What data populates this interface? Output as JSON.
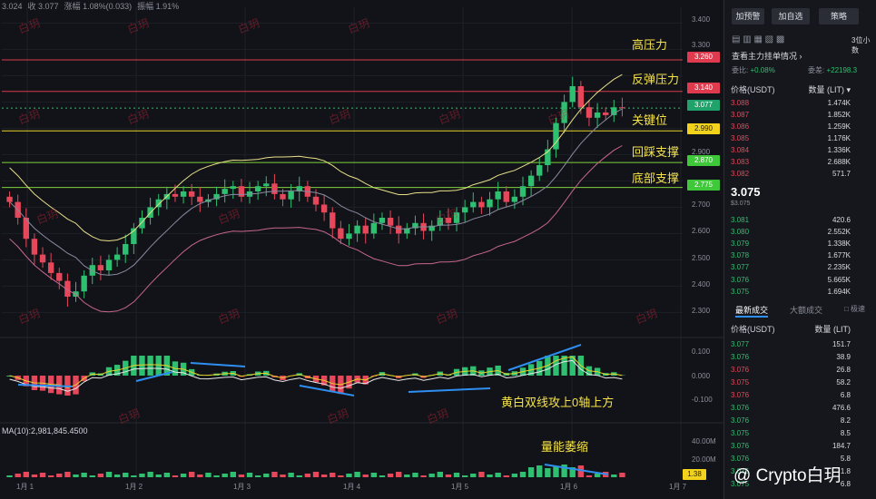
{
  "header": {
    "open_partial": "3.024",
    "close_text": "收 3.077",
    "change_text": "涨幅 1.08%(0.033)",
    "amplitude_text": "振幅 1.91%"
  },
  "annotations": {
    "high_resistance": "高压力",
    "rebound_resistance": "反弹压力",
    "key_level": "关键位",
    "pullback_support": "回踩支撑",
    "bottom_support": "底部支撑",
    "macd_note": "黄白双线攻上0轴上方",
    "volume_note": "量能萎缩"
  },
  "price_tags": {
    "high": "3.260",
    "rebound": "3.140",
    "last": "3.077",
    "key": "2.990",
    "pullback": "2.870",
    "bottom": "2.775"
  },
  "colors": {
    "up": "#2fbf71",
    "down": "#e6475a",
    "annotation": "#f5e34a",
    "upper_band": "#e8e08a",
    "lower_band": "#c7668f",
    "middle_band": "#8a8aa0",
    "arrow": "#2e8ff0"
  },
  "ma_text": "MA(10):2,981,845.4500",
  "watermark": "@ Crypto白玥",
  "watermark_small": "白玥",
  "volume_label_partial": "1.38",
  "chart_data": {
    "type": "candlestick",
    "y_ticks": [
      "3.400",
      "3.300",
      "3.200",
      "3.100",
      "3.000",
      "2.900",
      "2.800",
      "2.700",
      "2.600",
      "2.500",
      "2.400",
      "2.300"
    ],
    "x_ticks": [
      "1月 1",
      "1月 2",
      "1月 3",
      "1月 4",
      "1月 5",
      "1月 6",
      "1月 7"
    ],
    "macd_ticks": [
      "0.100",
      "0.000",
      "-0.100"
    ],
    "volume_ticks": [
      "40.00M",
      "20.00M"
    ],
    "horizontal_levels": [
      3.26,
      3.14,
      2.99,
      2.87,
      2.775
    ],
    "last_price": 3.077,
    "ylim": [
      2.26,
      3.46
    ],
    "series_close": [
      2.72,
      2.66,
      2.58,
      2.52,
      2.49,
      2.45,
      2.42,
      2.36,
      2.38,
      2.44,
      2.48,
      2.46,
      2.5,
      2.52,
      2.56,
      2.62,
      2.66,
      2.7,
      2.73,
      2.75,
      2.74,
      2.76,
      2.74,
      2.72,
      2.73,
      2.75,
      2.77,
      2.78,
      2.74,
      2.76,
      2.78,
      2.79,
      2.75,
      2.73,
      2.76,
      2.78,
      2.74,
      2.71,
      2.68,
      2.62,
      2.58,
      2.6,
      2.63,
      2.6,
      2.64,
      2.66,
      2.63,
      2.6,
      2.62,
      2.64,
      2.61,
      2.63,
      2.66,
      2.64,
      2.68,
      2.7,
      2.72,
      2.7,
      2.73,
      2.76,
      2.72,
      2.74,
      2.78,
      2.82,
      2.86,
      2.92,
      3.02,
      3.1,
      3.16,
      3.08,
      3.04,
      3.06,
      3.05,
      3.08,
      3.077
    ]
  }
}
